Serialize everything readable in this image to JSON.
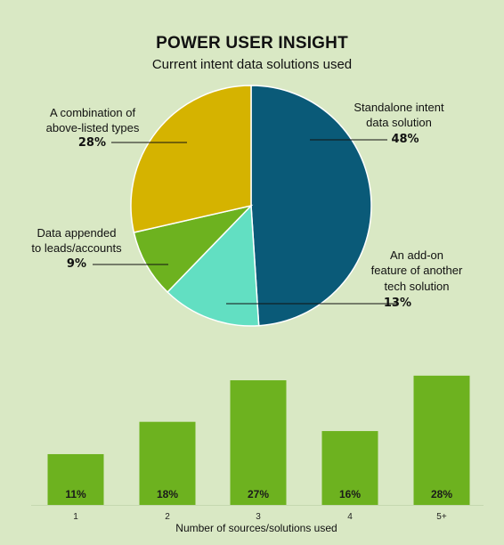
{
  "header": {
    "title": "POWER USER INSIGHT",
    "subtitle": "Current intent data solutions used"
  },
  "chart_data": [
    {
      "type": "pie",
      "title": "POWER USER INSIGHT",
      "subtitle": "Current intent data solutions used",
      "slices": [
        {
          "label_lines": [
            "Standalone intent",
            "data solution"
          ],
          "value": 48,
          "value_label": "48%",
          "color": "#0a5a78"
        },
        {
          "label_lines": [
            "An add-on",
            "feature of another",
            "tech solution"
          ],
          "value": 13,
          "value_label": "13%",
          "color": "#62dfc2"
        },
        {
          "label_lines": [
            "Data appended",
            "to leads/accounts"
          ],
          "value": 9,
          "value_label": "9%",
          "color": "#6db21f"
        },
        {
          "label_lines": [
            "A combination of",
            "above-listed types"
          ],
          "value": 28,
          "value_label": "28%",
          "color": "#d5b300"
        }
      ]
    },
    {
      "type": "bar",
      "categories": [
        "1",
        "2",
        "3",
        "4",
        "5+"
      ],
      "values": [
        11,
        18,
        27,
        16,
        28
      ],
      "value_labels": [
        "11%",
        "18%",
        "27%",
        "16%",
        "28%"
      ],
      "xlabel": "Number of sources/solutions used",
      "ylabel": "",
      "ylim": [
        0,
        30
      ],
      "color": "#6db21f",
      "grid": false
    }
  ]
}
